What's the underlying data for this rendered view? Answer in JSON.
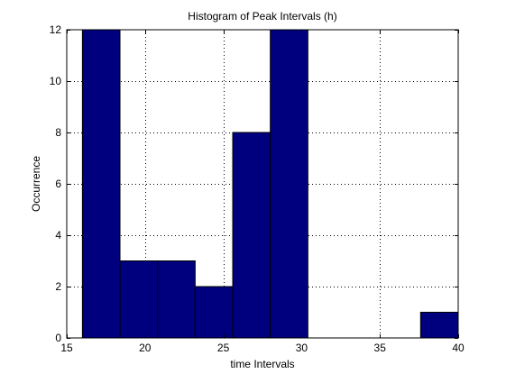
{
  "chart_data": {
    "type": "bar",
    "title": "Histogram of Peak Intervals (h)",
    "xlabel": "time Intervals",
    "ylabel": "Occurrence",
    "xlim": [
      15,
      40
    ],
    "ylim": [
      0,
      12
    ],
    "xticks": [
      15,
      20,
      25,
      30,
      35,
      40
    ],
    "yticks": [
      0,
      2,
      4,
      6,
      8,
      10,
      12
    ],
    "grid": true,
    "bin_edges": [
      16,
      18.4,
      20.8,
      23.2,
      25.6,
      28,
      30.4,
      32.8,
      35.2,
      37.6,
      40
    ],
    "values": [
      12,
      3,
      3,
      2,
      8,
      12,
      0,
      0,
      0,
      1
    ],
    "bar_color": "#00007f",
    "edge_color": "#000000"
  }
}
